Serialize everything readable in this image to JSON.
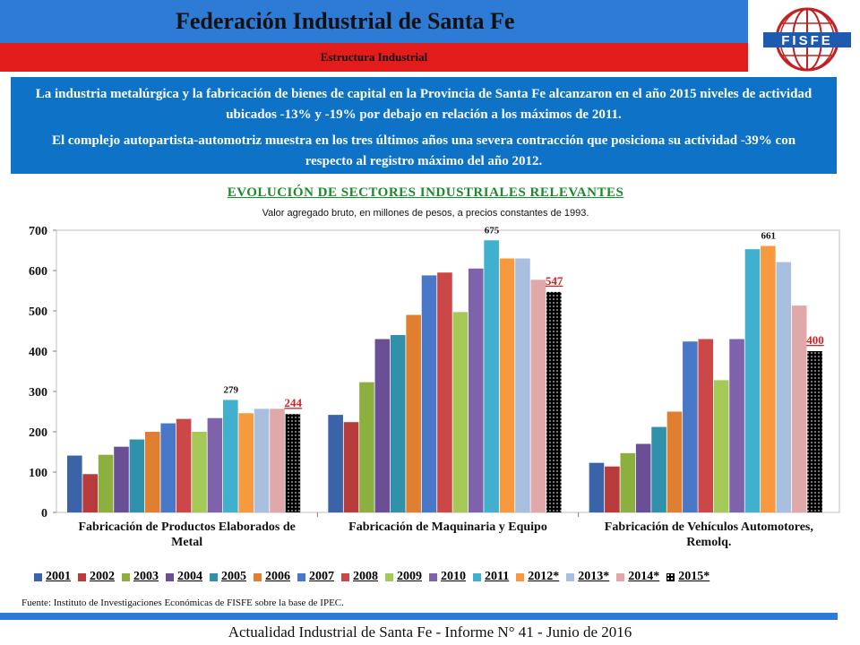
{
  "header": {
    "title": "Federación Industrial de Santa Fe",
    "subtitle": "Estructura Industrial",
    "logo_text": "FISFE"
  },
  "summary": {
    "paragraph1": "La industria metalúrgica y la fabricación de bienes de capital en la Provincia de Santa Fe alcanzaron en el año 2015 niveles de actividad ubicados -13% y -19% por debajo en relación a los máximos de 2011.",
    "paragraph2": "El complejo autopartista-automotriz muestra en los tres últimos años una severa contracción que posiciona su actividad -39% con respecto al registro máximo del año 2012."
  },
  "chart_data": {
    "type": "bar",
    "title": "EVOLUCIÓN DE SECTORES INDUSTRIALES RELEVANTES",
    "subtitle": "Valor agregado bruto, en millones de pesos, a precios constantes de 1993.",
    "categories": [
      "Fabricación de Productos Elaborados de Metal",
      "Fabricación de Maquinaria y Equipo",
      "Fabricación de Vehículos Automotores, Remolq."
    ],
    "ylim": [
      0,
      700
    ],
    "yticks": [
      0,
      100,
      200,
      300,
      400,
      500,
      600,
      700
    ],
    "grid": false,
    "legend_position": "bottom",
    "series": [
      {
        "name": "2001",
        "color": "#3b64a8",
        "values": [
          141,
          242,
          123
        ]
      },
      {
        "name": "2002",
        "color": "#b83b3b",
        "values": [
          95,
          224,
          114
        ]
      },
      {
        "name": "2003",
        "color": "#8cb040",
        "values": [
          143,
          323,
          147
        ]
      },
      {
        "name": "2004",
        "color": "#6b4f96",
        "values": [
          163,
          430,
          170
        ]
      },
      {
        "name": "2005",
        "color": "#3191ab",
        "values": [
          181,
          440,
          212
        ]
      },
      {
        "name": "2006",
        "color": "#e07f30",
        "values": [
          200,
          490,
          250
        ]
      },
      {
        "name": "2007",
        "color": "#4a78c9",
        "values": [
          221,
          588,
          424
        ]
      },
      {
        "name": "2008",
        "color": "#cc4848",
        "values": [
          232,
          595,
          430
        ]
      },
      {
        "name": "2009",
        "color": "#a4c957",
        "values": [
          200,
          497,
          328
        ]
      },
      {
        "name": "2010",
        "color": "#7f62ac",
        "values": [
          234,
          605,
          430
        ]
      },
      {
        "name": "2011",
        "color": "#41b0cf",
        "values": [
          279,
          675,
          653
        ]
      },
      {
        "name": "2012*",
        "color": "#f6993f",
        "values": [
          246,
          630,
          661
        ]
      },
      {
        "name": "2013*",
        "color": "#a8bfe0",
        "values": [
          257,
          630,
          621
        ]
      },
      {
        "name": "2014*",
        "color": "#e0a8a8",
        "values": [
          257,
          577,
          513
        ]
      },
      {
        "name": "2015*",
        "color": "#000000",
        "pattern": "dotted",
        "values": [
          244,
          547,
          400
        ]
      }
    ],
    "data_labels": [
      {
        "category": 0,
        "series": "2011",
        "text": "279",
        "color": "#111111"
      },
      {
        "category": 0,
        "series": "2015*",
        "text": "244",
        "color": "#d62020"
      },
      {
        "category": 1,
        "series": "2011",
        "text": "675",
        "color": "#111111"
      },
      {
        "category": 1,
        "series": "2015*",
        "text": "547",
        "color": "#d62020"
      },
      {
        "category": 2,
        "series": "2012*",
        "text": "661",
        "color": "#111111"
      },
      {
        "category": 2,
        "series": "2015*",
        "text": "400",
        "color": "#d62020"
      }
    ]
  },
  "source_note": "Fuente: Instituto de Investigaciones Económicas de FISFE sobre la base de IPEC.",
  "footer": "Actualidad Industrial de Santa Fe - Informe N° 41 - Junio de 2016"
}
